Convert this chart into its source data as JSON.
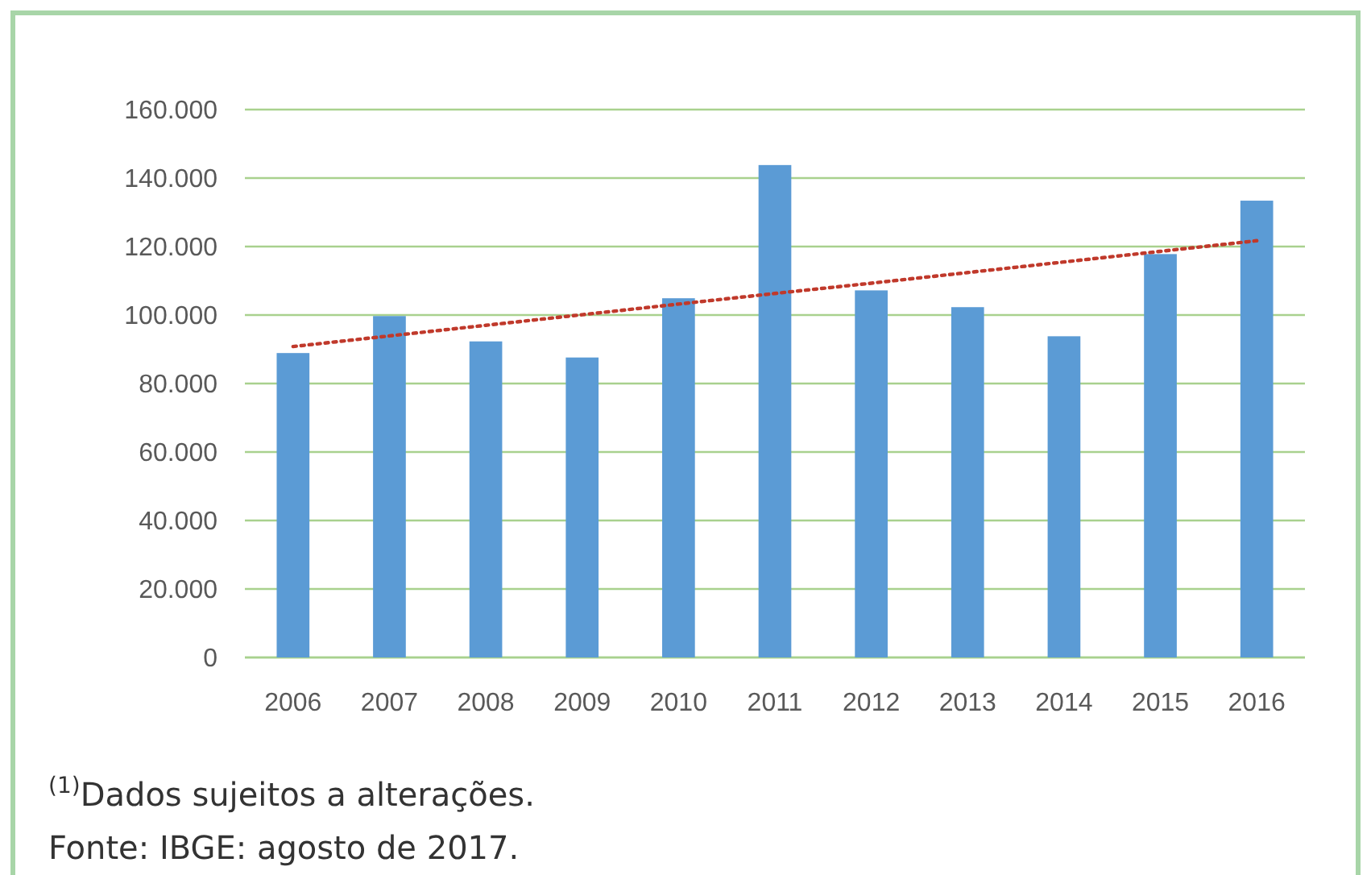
{
  "chart_data": {
    "type": "bar",
    "categories": [
      "2006",
      "2007",
      "2008",
      "2009",
      "2010",
      "2011",
      "2012",
      "2013",
      "2014",
      "2015",
      "2016"
    ],
    "series": [
      {
        "color": "#5b9bd5",
        "values": [
          88900,
          99700,
          92300,
          87600,
          104900,
          143800,
          107200,
          102300,
          93800,
          117800,
          133400
        ]
      },
      {
        "type": "line",
        "color": "#c0392b",
        "line_style": "dotted",
        "values": [
          90800,
          93900,
          97000,
          100100,
          103200,
          106300,
          109300,
          112400,
          115500,
          118600,
          121700
        ]
      }
    ],
    "ylim": [
      0,
      160000
    ],
    "yticks": [
      {
        "value": 0,
        "label": "0"
      },
      {
        "value": 20000,
        "label": "20.000"
      },
      {
        "value": 40000,
        "label": "40.000"
      },
      {
        "value": 60000,
        "label": "60.000"
      },
      {
        "value": 80000,
        "label": "80.000"
      },
      {
        "value": 100000,
        "label": "100.000"
      },
      {
        "value": 120000,
        "label": "120.000"
      },
      {
        "value": 140000,
        "label": "140.000"
      },
      {
        "value": 160000,
        "label": "160.000"
      }
    ],
    "grid": "y",
    "annotations": [
      "$^{(1)}$Dados sujeitos a alterações.",
      "Fonte: IBGE: agosto de 2017."
    ]
  }
}
